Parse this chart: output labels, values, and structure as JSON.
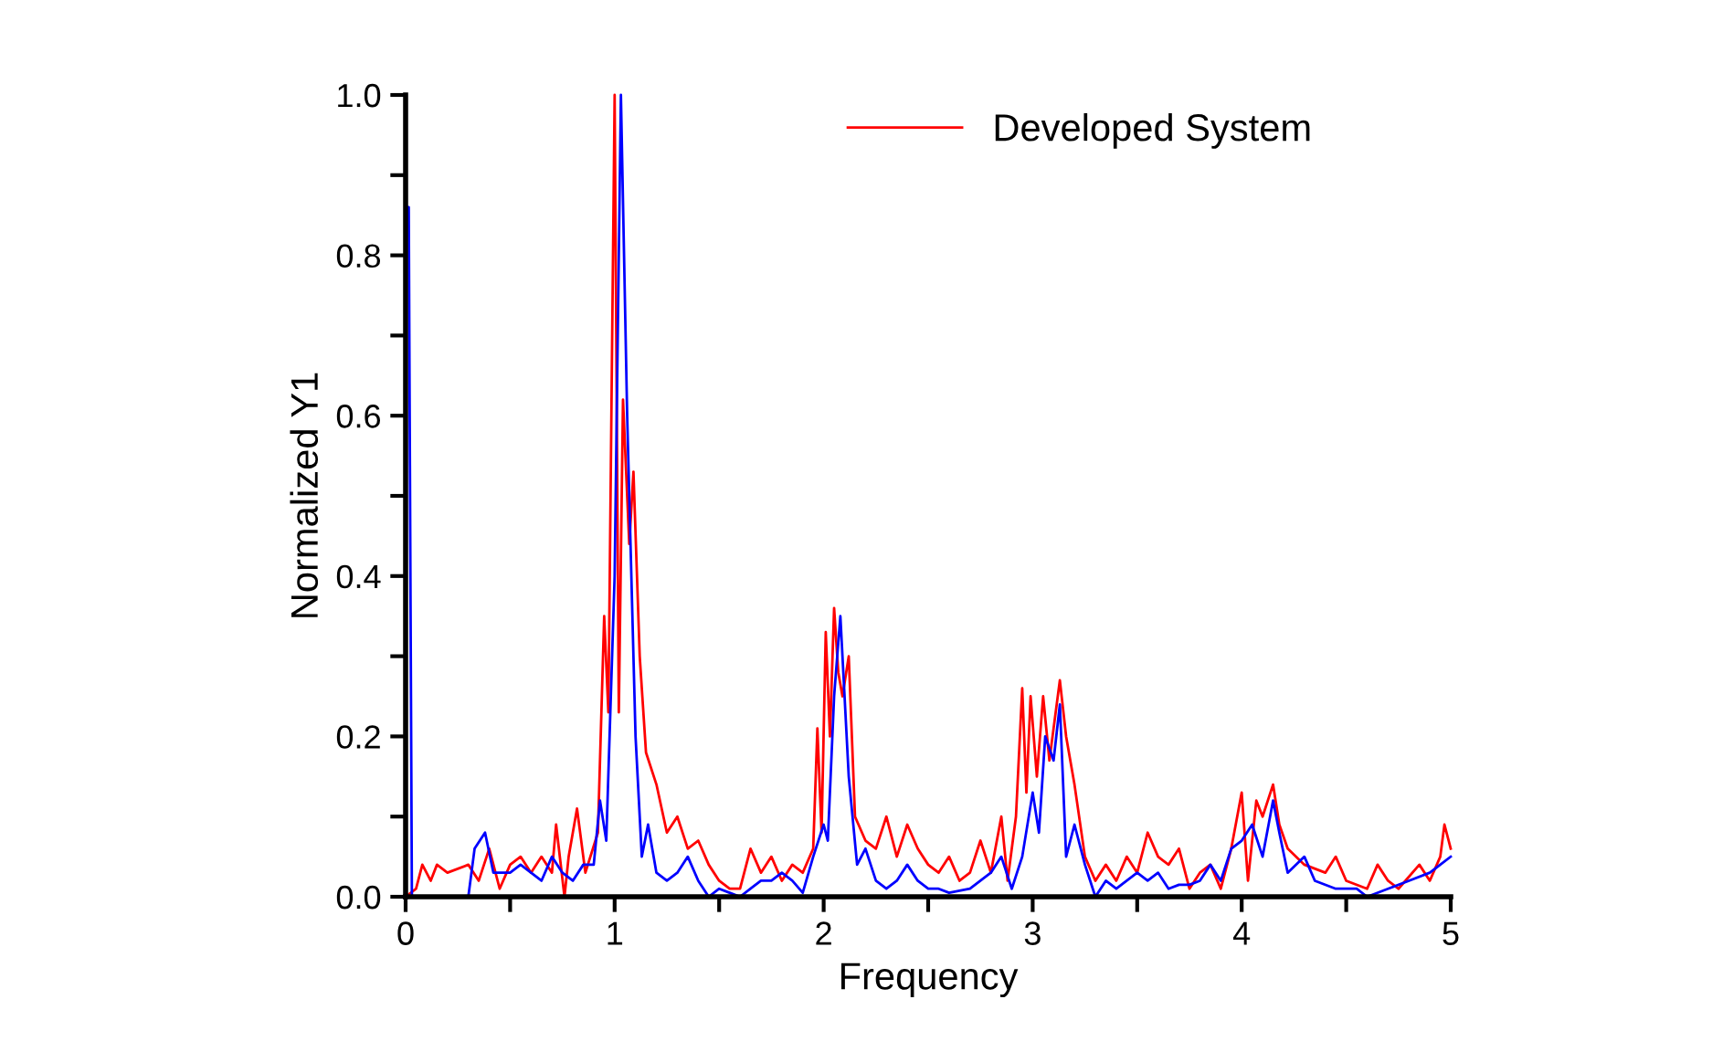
{
  "chart_data": {
    "type": "line",
    "xlabel": "Frequency",
    "ylabel": "Normalized Y1",
    "xlim": [
      0,
      5
    ],
    "ylim": [
      0,
      1.0
    ],
    "xticks": [
      0,
      {
        "value": 0.5,
        "label": null
      },
      1,
      {
        "value": 1.5,
        "label": null
      },
      2,
      {
        "value": 2.5,
        "label": null
      },
      3,
      {
        "value": 3.5,
        "label": null
      },
      4,
      {
        "value": 4.5,
        "label": null
      },
      5
    ],
    "yticks": [
      {
        "value": 0,
        "label": "0.0"
      },
      {
        "value": 0.1,
        "label": null
      },
      0.2,
      {
        "value": 0.3,
        "label": null
      },
      0.4,
      {
        "value": 0.5,
        "label": null
      },
      0.6,
      {
        "value": 0.7,
        "label": null
      },
      0.8,
      {
        "value": 0.9,
        "label": null
      },
      {
        "value": 1.0,
        "label": "1.0"
      }
    ],
    "grid": false,
    "legend": "top right",
    "marker": "none",
    "line_style": "solid",
    "series": [
      {
        "name": "Developed System",
        "color": "#ff0000",
        "x": [
          0,
          0.05,
          0.08,
          0.12,
          0.15,
          0.2,
          0.3,
          0.35,
          0.4,
          0.45,
          0.5,
          0.55,
          0.6,
          0.65,
          0.7,
          0.72,
          0.76,
          0.78,
          0.82,
          0.86,
          0.92,
          0.95,
          0.97,
          1.0,
          1.02,
          1.04,
          1.07,
          1.09,
          1.12,
          1.15,
          1.2,
          1.25,
          1.3,
          1.35,
          1.4,
          1.45,
          1.5,
          1.55,
          1.6,
          1.65,
          1.7,
          1.75,
          1.8,
          1.85,
          1.9,
          1.95,
          1.97,
          1.99,
          2.01,
          2.03,
          2.05,
          2.07,
          2.09,
          2.12,
          2.15,
          2.2,
          2.25,
          2.3,
          2.35,
          2.4,
          2.45,
          2.5,
          2.55,
          2.6,
          2.65,
          2.7,
          2.75,
          2.8,
          2.85,
          2.88,
          2.92,
          2.95,
          2.97,
          2.99,
          3.02,
          3.05,
          3.08,
          3.1,
          3.13,
          3.16,
          3.2,
          3.25,
          3.3,
          3.35,
          3.4,
          3.45,
          3.5,
          3.55,
          3.6,
          3.65,
          3.7,
          3.75,
          3.8,
          3.85,
          3.9,
          3.95,
          4.0,
          4.03,
          4.07,
          4.1,
          4.15,
          4.18,
          4.22,
          4.3,
          4.4,
          4.45,
          4.5,
          4.6,
          4.65,
          4.7,
          4.75,
          4.85,
          4.9,
          4.95,
          4.97,
          5.0
        ],
        "values": [
          0,
          0.01,
          0.04,
          0.02,
          0.04,
          0.03,
          0.04,
          0.02,
          0.06,
          0.01,
          0.04,
          0.05,
          0.03,
          0.05,
          0.03,
          0.09,
          0.0,
          0.05,
          0.11,
          0.03,
          0.08,
          0.35,
          0.23,
          1.0,
          0.23,
          0.62,
          0.44,
          0.53,
          0.3,
          0.18,
          0.14,
          0.08,
          0.1,
          0.06,
          0.07,
          0.04,
          0.02,
          0.01,
          0.01,
          0.06,
          0.03,
          0.05,
          0.02,
          0.04,
          0.03,
          0.06,
          0.21,
          0.08,
          0.33,
          0.2,
          0.36,
          0.28,
          0.25,
          0.3,
          0.1,
          0.07,
          0.06,
          0.1,
          0.05,
          0.09,
          0.06,
          0.04,
          0.03,
          0.05,
          0.02,
          0.03,
          0.07,
          0.03,
          0.1,
          0.02,
          0.1,
          0.26,
          0.13,
          0.25,
          0.15,
          0.25,
          0.17,
          0.21,
          0.27,
          0.2,
          0.14,
          0.05,
          0.02,
          0.04,
          0.02,
          0.05,
          0.03,
          0.08,
          0.05,
          0.04,
          0.06,
          0.01,
          0.03,
          0.04,
          0.01,
          0.06,
          0.13,
          0.02,
          0.12,
          0.1,
          0.14,
          0.09,
          0.06,
          0.04,
          0.03,
          0.05,
          0.02,
          0.01,
          0.04,
          0.02,
          0.01,
          0.04,
          0.02,
          0.05,
          0.09,
          0.06
        ]
      },
      {
        "color": "#0000ff",
        "x": [
          0,
          0.015,
          0.03,
          0.3,
          0.33,
          0.38,
          0.42,
          0.5,
          0.55,
          0.6,
          0.65,
          0.7,
          0.75,
          0.8,
          0.85,
          0.9,
          0.93,
          0.96,
          1.0,
          1.03,
          1.06,
          1.1,
          1.13,
          1.16,
          1.2,
          1.25,
          1.3,
          1.35,
          1.4,
          1.45,
          1.5,
          1.55,
          1.6,
          1.65,
          1.7,
          1.75,
          1.8,
          1.85,
          1.9,
          1.95,
          2.0,
          2.02,
          2.05,
          2.08,
          2.12,
          2.16,
          2.2,
          2.25,
          2.3,
          2.35,
          2.4,
          2.45,
          2.5,
          2.55,
          2.6,
          2.7,
          2.75,
          2.8,
          2.85,
          2.9,
          2.95,
          3.0,
          3.03,
          3.06,
          3.1,
          3.13,
          3.16,
          3.2,
          3.25,
          3.3,
          3.35,
          3.4,
          3.45,
          3.5,
          3.55,
          3.6,
          3.65,
          3.7,
          3.75,
          3.8,
          3.85,
          3.9,
          3.95,
          4.0,
          4.05,
          4.1,
          4.15,
          4.18,
          4.22,
          4.3,
          4.35,
          4.45,
          4.55,
          4.6,
          4.7,
          4.8,
          4.9,
          4.95,
          5.0
        ],
        "values": [
          0.86,
          0.86,
          0,
          0,
          0.06,
          0.08,
          0.03,
          0.03,
          0.04,
          0.03,
          0.02,
          0.05,
          0.03,
          0.02,
          0.04,
          0.04,
          0.12,
          0.07,
          0.4,
          1.0,
          0.6,
          0.2,
          0.05,
          0.09,
          0.03,
          0.02,
          0.03,
          0.05,
          0.02,
          0.0,
          0.01,
          0.005,
          0.0,
          0.01,
          0.02,
          0.02,
          0.03,
          0.02,
          0.005,
          0.05,
          0.09,
          0.07,
          0.25,
          0.35,
          0.15,
          0.04,
          0.06,
          0.02,
          0.01,
          0.02,
          0.04,
          0.02,
          0.01,
          0.01,
          0.005,
          0.01,
          0.02,
          0.03,
          0.05,
          0.01,
          0.05,
          0.13,
          0.08,
          0.2,
          0.17,
          0.24,
          0.05,
          0.09,
          0.04,
          0.0,
          0.02,
          0.01,
          0.02,
          0.03,
          0.02,
          0.03,
          0.01,
          0.015,
          0.015,
          0.02,
          0.04,
          0.02,
          0.06,
          0.07,
          0.09,
          0.05,
          0.12,
          0.08,
          0.03,
          0.05,
          0.02,
          0.01,
          0.01,
          0.0,
          0.01,
          0.02,
          0.03,
          0.04,
          0.05
        ]
      }
    ]
  }
}
